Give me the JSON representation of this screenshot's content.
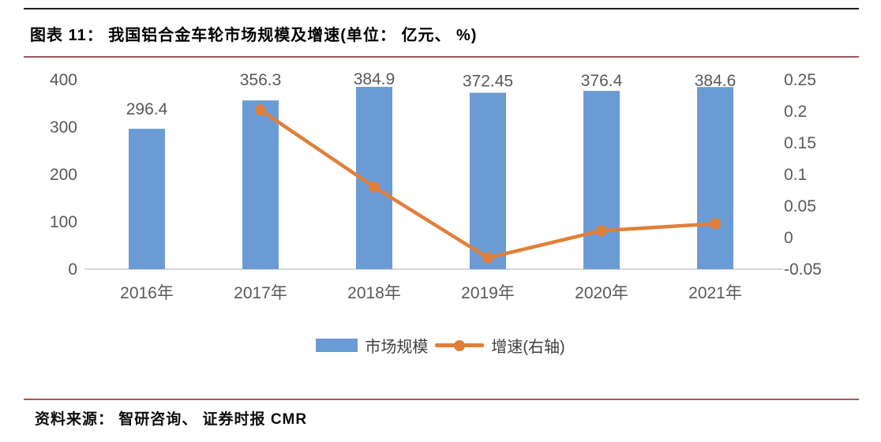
{
  "header": {
    "title": "图表 11： 我国铝合金车轮市场规模及增速(单位： 亿元、 %)"
  },
  "footer": {
    "source": "资料来源： 智研咨询、 证券时报 CMR"
  },
  "legend": {
    "bar_label": "市场规模",
    "line_label": "增速(右轴)"
  },
  "colors": {
    "bar": "#6a9bd5",
    "line": "#e07f39",
    "axis_text": "#595959",
    "data_label_text": "#595959",
    "axis_line": "#d6d6d6",
    "rule_dark": "#1c1c1c",
    "rule_red": "#a05a5a"
  },
  "chart_data": {
    "type": "bar",
    "subtype": "combo-bar-line-dual-axis",
    "title": "我国铝合金车轮市场规模及增速",
    "units": "亿元、%",
    "categories": [
      "2016年",
      "2017年",
      "2018年",
      "2019年",
      "2020年",
      "2021年"
    ],
    "series": [
      {
        "name": "市场规模",
        "type": "bar",
        "axis": "left",
        "values": [
          296.4,
          356.3,
          384.9,
          372.45,
          376.4,
          384.6
        ],
        "labels": [
          "296.4",
          "356.3",
          "384.9",
          "372.45",
          "376.4",
          "384.6"
        ]
      },
      {
        "name": "增速(右轴)",
        "type": "line",
        "axis": "right",
        "values": [
          null,
          0.202,
          0.08,
          -0.032,
          0.011,
          0.022
        ]
      }
    ],
    "left_axis": {
      "ticks": [
        "400",
        "300",
        "200",
        "100",
        "0"
      ],
      "min": 0,
      "max": 400
    },
    "right_axis": {
      "ticks": [
        "0.25",
        "0.2",
        "0.15",
        "0.1",
        "0.05",
        "0",
        "-0.05"
      ],
      "min": -0.05,
      "max": 0.25
    },
    "grid": "off",
    "legend_position": "bottom"
  }
}
